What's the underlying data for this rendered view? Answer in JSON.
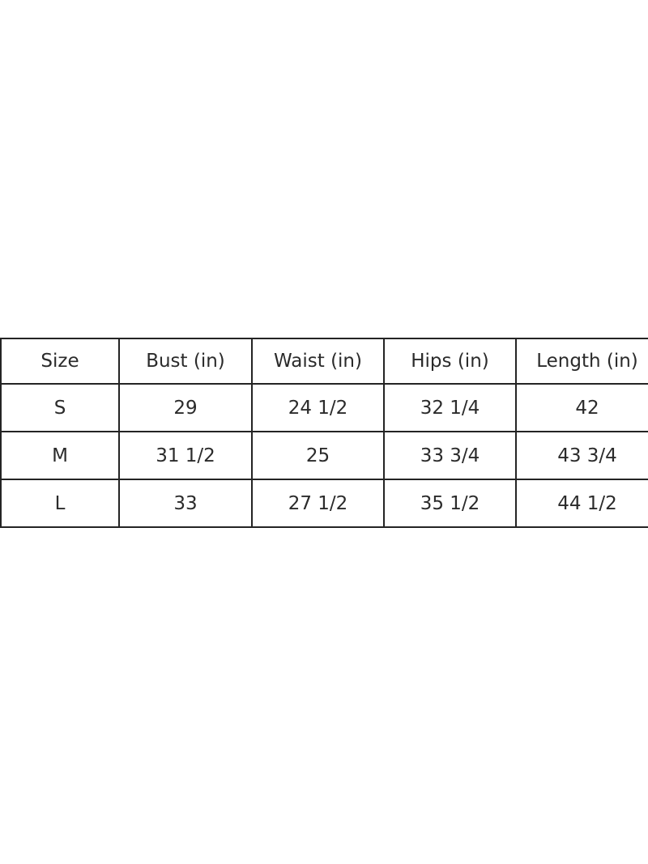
{
  "colors": {
    "background": "#ffffff",
    "border": "#242424",
    "text": "#2b2b2b"
  },
  "chart_data": {
    "type": "table",
    "columns": [
      "Size",
      "Bust (in)",
      "Waist (in)",
      "Hips (in)",
      "Length (in)"
    ],
    "rows": [
      [
        "S",
        "29",
        "24 1/2",
        "32 1/4",
        "42"
      ],
      [
        "M",
        "31 1/2",
        "25",
        "33 3/4",
        "43 3/4"
      ],
      [
        "L",
        "33",
        "27 1/2",
        "35 1/2",
        "44 1/2"
      ]
    ]
  }
}
